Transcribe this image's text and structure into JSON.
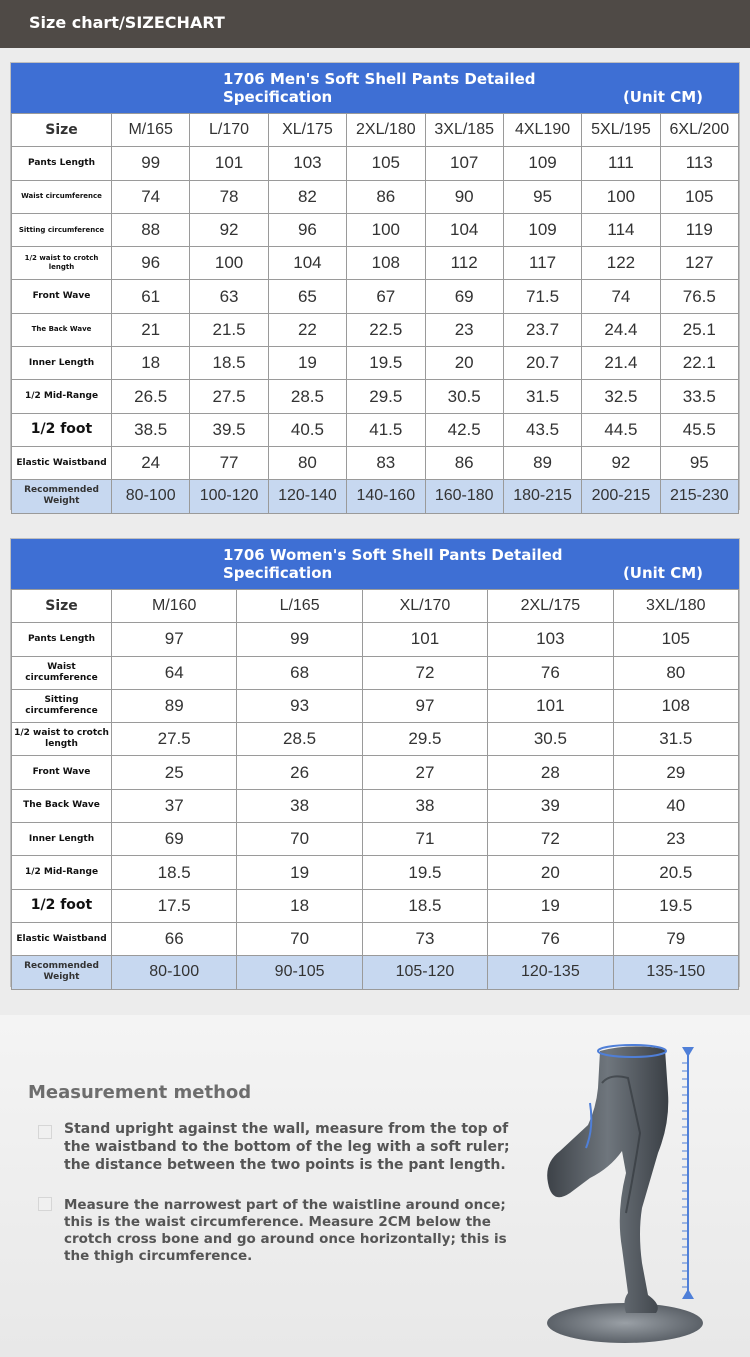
{
  "header": {
    "title": "Size chart/SIZECHART"
  },
  "men": {
    "title_line1": "1706 Men's Soft Shell Pants Detailed",
    "title_line2": "Specification",
    "unit": "(Unit CM)",
    "size_label": "Size",
    "sizes": [
      "M/165",
      "L/170",
      "XL/175",
      "2XL/180",
      "3XL/185",
      "4XL190",
      "5XL/195",
      "6XL/200"
    ],
    "rows": [
      {
        "label": "Pants Length",
        "values": [
          "99",
          "101",
          "103",
          "105",
          "107",
          "109",
          "111",
          "113"
        ]
      },
      {
        "label": "Waist circumference",
        "values": [
          "74",
          "78",
          "82",
          "86",
          "90",
          "95",
          "100",
          "105"
        ]
      },
      {
        "label": "Sitting circumference",
        "values": [
          "88",
          "92",
          "96",
          "100",
          "104",
          "109",
          "114",
          "119"
        ]
      },
      {
        "label": "1/2 waist to crotch length",
        "values": [
          "96",
          "100",
          "104",
          "108",
          "112",
          "117",
          "122",
          "127"
        ]
      },
      {
        "label": "Front Wave",
        "values": [
          "61",
          "63",
          "65",
          "67",
          "69",
          "71.5",
          "74",
          "76.5"
        ]
      },
      {
        "label": "The Back Wave",
        "values": [
          "21",
          "21.5",
          "22",
          "22.5",
          "23",
          "23.7",
          "24.4",
          "25.1"
        ]
      },
      {
        "label": "Inner Length",
        "values": [
          "18",
          "18.5",
          "19",
          "19.5",
          "20",
          "20.7",
          "21.4",
          "22.1"
        ]
      },
      {
        "label": "1/2 Mid-Range",
        "values": [
          "26.5",
          "27.5",
          "28.5",
          "29.5",
          "30.5",
          "31.5",
          "32.5",
          "33.5"
        ]
      },
      {
        "label": "1/2 foot",
        "values": [
          "38.5",
          "39.5",
          "40.5",
          "41.5",
          "42.5",
          "43.5",
          "44.5",
          "45.5"
        ]
      },
      {
        "label": "Elastic Waistband",
        "values": [
          "24",
          "77",
          "80",
          "83",
          "86",
          "89",
          "92",
          "95"
        ]
      }
    ],
    "weight_label": "Recommended Weight",
    "weights": [
      "80-100",
      "100-120",
      "120-140",
      "140-160",
      "160-180",
      "180-215",
      "200-215",
      "215-230"
    ]
  },
  "women": {
    "title_line1": "1706 Women's Soft Shell Pants Detailed",
    "title_line2": "Specification",
    "unit": "(Unit CM)",
    "size_label": "Size",
    "sizes": [
      "M/160",
      "L/165",
      "XL/170",
      "2XL/175",
      "3XL/180"
    ],
    "rows": [
      {
        "label": "Pants Length",
        "values": [
          "97",
          "99",
          "101",
          "103",
          "105"
        ]
      },
      {
        "label": "Waist circumference",
        "values": [
          "64",
          "68",
          "72",
          "76",
          "80"
        ]
      },
      {
        "label": "Sitting circumference",
        "values": [
          "89",
          "93",
          "97",
          "101",
          "108"
        ]
      },
      {
        "label": "1/2 waist to crotch length",
        "values": [
          "27.5",
          "28.5",
          "29.5",
          "30.5",
          "31.5"
        ]
      },
      {
        "label": "Front Wave",
        "values": [
          "25",
          "26",
          "27",
          "28",
          "29"
        ]
      },
      {
        "label": "The Back Wave",
        "values": [
          "37",
          "38",
          "38",
          "39",
          "40"
        ]
      },
      {
        "label": "Inner Length",
        "values": [
          "69",
          "70",
          "71",
          "72",
          "23"
        ]
      },
      {
        "label": "1/2 Mid-Range",
        "values": [
          "18.5",
          "19",
          "19.5",
          "20",
          "20.5"
        ]
      },
      {
        "label": "1/2 foot",
        "values": [
          "17.5",
          "18",
          "18.5",
          "19",
          "19.5"
        ]
      },
      {
        "label": "Elastic Waistband",
        "values": [
          "66",
          "70",
          "73",
          "76",
          "79"
        ]
      }
    ],
    "weight_label": "Recommended Weight",
    "weights": [
      "80-100",
      "90-105",
      "105-120",
      "120-135",
      "135-150"
    ]
  },
  "measurement": {
    "title": "Measurement method",
    "step1": "Stand upright against the wall, measure from the top of the waistband to the bottom of the leg with a soft ruler; the distance between the two points is the pant length.",
    "step2": "Measure the narrowest part of the waistline around once; this is the waist circumference. Measure 2CM below the crotch cross bone and go around once horizontally; this is the thigh circumference."
  },
  "colors": {
    "header_bar": "#4f4a46",
    "table_header": "#3e6fd4",
    "weight_row": "#c7d8f0",
    "ruler": "#4f7fd8"
  },
  "icons": [
    "mannequin-legs-icon",
    "measuring-ruler-icon"
  ]
}
